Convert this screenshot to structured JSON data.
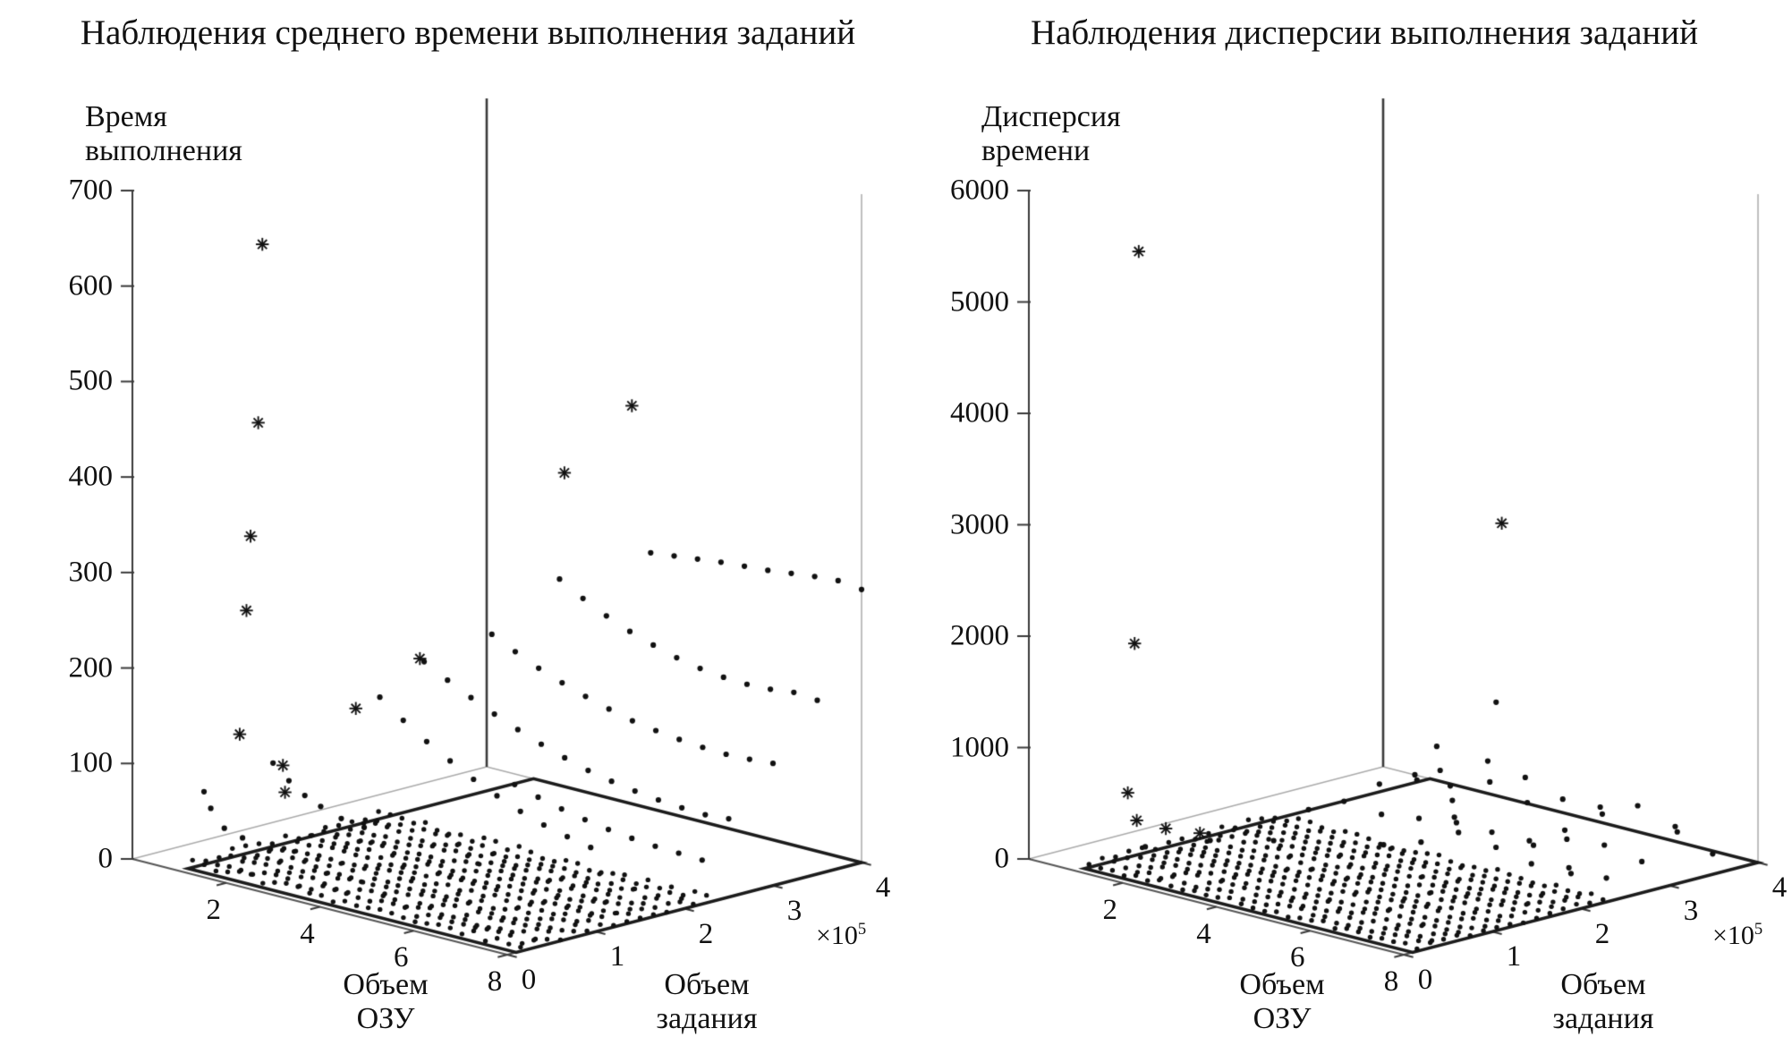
{
  "colors": {
    "background": "#ffffff",
    "marker": "#111111",
    "axis_dark": "#3a3a3a",
    "axis_mid": "#555555",
    "axis_light": "#aaaaaa",
    "outline": "#1b1b1b"
  },
  "chart_data": [
    {
      "type": "scatter",
      "projection": "3d",
      "title": "Наблюдения среднего времени выполнения заданий",
      "zlabel": [
        "Время",
        "выполнения"
      ],
      "xlabel": [
        "Объем",
        "ОЗУ"
      ],
      "ylabel": [
        "Объем",
        "задания"
      ],
      "y_exp_base": "×10",
      "y_exp_power": "5",
      "xlim": [
        0,
        8
      ],
      "ylim": [
        0,
        4
      ],
      "zlim": [
        0,
        700
      ],
      "x_ticks": [
        2,
        4,
        6,
        8
      ],
      "y_ticks": [
        0,
        1,
        2,
        3,
        4
      ],
      "z_ticks": [
        0,
        100,
        200,
        300,
        400,
        500,
        600,
        700
      ],
      "series": {
        "floor_grid": {
          "marker": "dot",
          "comment": "dense grid of near-zero mean times on the base plane",
          "x_range": [
            1.0,
            8,
            0.25
          ],
          "y_values": [
            0.15,
            0.3,
            0.45,
            0.6,
            0.75,
            0.9,
            1.05,
            1.2,
            1.35,
            1.5,
            1.65,
            1.8,
            1.95,
            2.1,
            2.25
          ],
          "z_noise": [
            1,
            9
          ]
        },
        "region_outline": {
          "x": [
            1.0,
            8
          ],
          "y": [
            0.1,
            4
          ]
        },
        "rows": [
          {
            "y": 4.0,
            "x_start": 3.5,
            "x_step": 0.5,
            "z": [
              268,
              271,
              274,
              277,
              279,
              281,
              284,
              287,
              289,
              286
            ]
          },
          {
            "y": 3.5,
            "x_start": 2.5,
            "x_step": 0.5,
            "z": [
              240,
              226,
              214,
              204,
              196,
              189,
              184,
              181,
              180,
              181,
              184,
              182
            ]
          },
          {
            "y": 3.0,
            "x_start": 2.0,
            "x_step": 0.5,
            "z": [
              188,
              176,
              165,
              156,
              148,
              141,
              135,
              131,
              128,
              126,
              125,
              126,
              128
            ]
          },
          {
            "y": 2.5,
            "x_start": 1.5,
            "x_step": 0.5,
            "z": [
              165,
              152,
              140,
              129,
              119,
              110,
              102,
              95,
              90,
              86,
              83,
              81,
              80,
              82
            ]
          },
          {
            "y": 2.0,
            "x_start": 1.5,
            "x_step": 0.5,
            "z": [
              140,
              122,
              106,
              92,
              79,
              68,
              58,
              50,
              44,
              39
            ]
          },
          {
            "y": 2.2,
            "x_start": 4.0,
            "x_step": 0.5,
            "z": [
              75,
              68,
              62,
              57,
              53,
              50,
              48,
              47,
              46
            ]
          }
        ],
        "spikes": {
          "marker": "asterisk",
          "points": [
            [
              1.45,
              0.7,
              645
            ],
            [
              1.4,
              0.68,
              458
            ],
            [
              1.35,
              0.62,
              340
            ],
            [
              1.3,
              0.6,
              262
            ],
            [
              1.25,
              0.55,
              133
            ],
            [
              1.7,
              0.8,
              100
            ],
            [
              1.65,
              0.85,
              70
            ],
            [
              2.5,
              1.2,
              160
            ],
            [
              3.3,
              1.5,
              215
            ],
            [
              4.4,
              2.55,
              398
            ],
            [
              4.8,
              3.1,
              460
            ]
          ]
        },
        "extra_dots": [
          [
            1.3,
            0.9,
            95
          ],
          [
            1.45,
            1.0,
            76
          ],
          [
            1.6,
            1.1,
            60
          ],
          [
            1.75,
            1.2,
            48
          ],
          [
            1.3,
            0.35,
            40
          ],
          [
            1.5,
            0.45,
            30
          ],
          [
            2.0,
            1.3,
            36
          ],
          [
            2.3,
            1.4,
            28
          ],
          [
            1.2,
            0.25,
            62
          ],
          [
            1.15,
            0.2,
            80
          ]
        ]
      }
    },
    {
      "type": "scatter",
      "projection": "3d",
      "title": "Наблюдения дисперсии выполнения заданий",
      "zlabel": [
        "Дисперсия",
        "времени"
      ],
      "xlabel": [
        "Объем",
        "ОЗУ"
      ],
      "ylabel": [
        "Объем",
        "задания"
      ],
      "y_exp_base": "×10",
      "y_exp_power": "5",
      "xlim": [
        0,
        8
      ],
      "ylim": [
        0,
        4
      ],
      "zlim": [
        0,
        6000
      ],
      "x_ticks": [
        2,
        4,
        6,
        8
      ],
      "y_ticks": [
        0,
        1,
        2,
        3,
        4
      ],
      "z_ticks": [
        0,
        1000,
        2000,
        3000,
        4000,
        5000,
        6000
      ],
      "series": {
        "floor_grid": {
          "marker": "dot",
          "comment": "dense grid of near-zero variances on the base plane",
          "x_range": [
            1.0,
            8,
            0.25
          ],
          "y_values": [
            0.15,
            0.3,
            0.45,
            0.6,
            0.75,
            0.9,
            1.05,
            1.2,
            1.35,
            1.5,
            1.65,
            1.8,
            1.95,
            2.1,
            2.25
          ],
          "z_noise": [
            5,
            60
          ]
        },
        "region_outline": {
          "x": [
            1.0,
            8
          ],
          "y": [
            0.1,
            4
          ]
        },
        "rows": [],
        "scatter_field": {
          "marker": "dot",
          "x_values": [
            2.0,
            2.8,
            3.6,
            4.4,
            5.2,
            6.0,
            6.8,
            7.6
          ],
          "y_values": [
            2.1,
            2.5,
            2.9,
            3.3,
            3.7
          ],
          "z_noise": [
            60,
            430
          ],
          "keep": 0.8
        },
        "spikes": {
          "marker": "asterisk",
          "points": [
            [
              1.4,
              0.5,
              5500
            ],
            [
              1.35,
              0.48,
              1980
            ],
            [
              1.28,
              0.44,
              640
            ],
            [
              1.32,
              0.52,
              380
            ],
            [
              1.6,
              0.7,
              300
            ],
            [
              1.95,
              0.9,
              255
            ],
            [
              4.8,
              2.8,
              2950
            ]
          ]
        },
        "extra_dots": [
          [
            1.9,
            3.6,
            470
          ],
          [
            2.6,
            3.9,
            880
          ],
          [
            1.5,
            3.85,
            160
          ],
          [
            1.35,
            0.6,
            130
          ],
          [
            1.6,
            1.2,
            90
          ],
          [
            2.2,
            1.6,
            70
          ]
        ]
      }
    }
  ]
}
